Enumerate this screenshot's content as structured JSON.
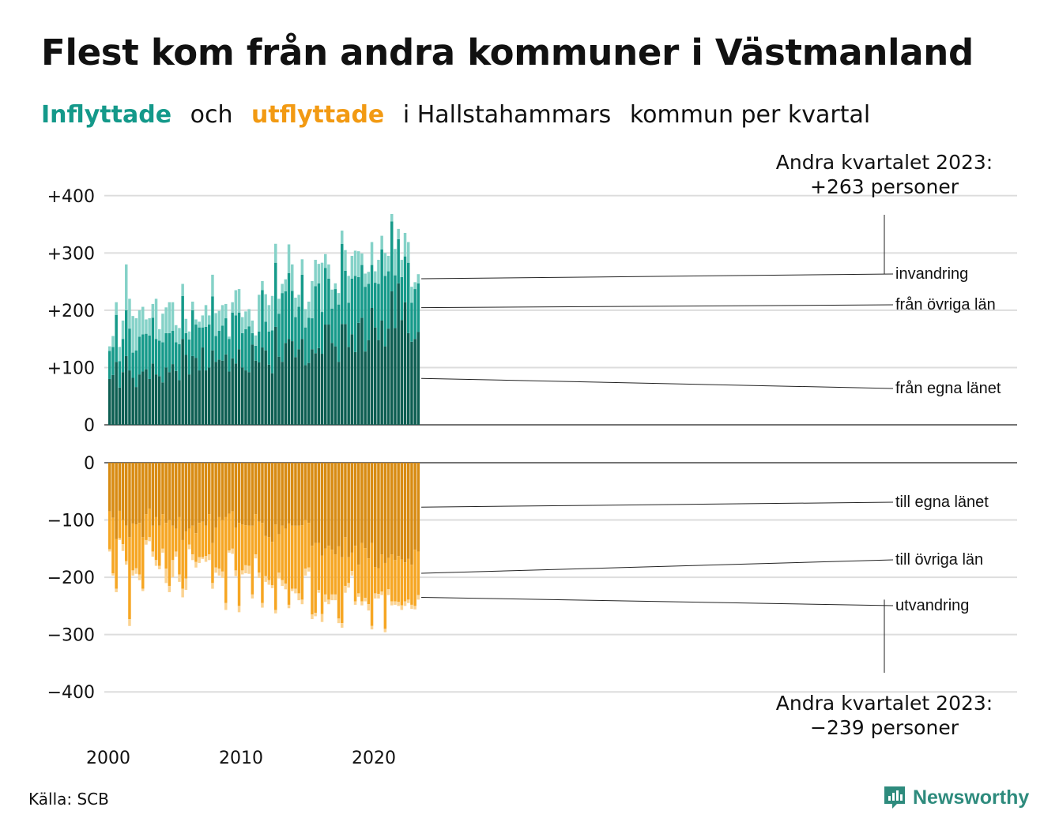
{
  "title": "Flest kom från andra kommuner i Västmanland",
  "subtitle": {
    "part1": "Inflyttade",
    "part2": "och",
    "part3": "utflyttade",
    "part4": "i Hallstahammars",
    "part5": "kommun per kvartal"
  },
  "source": "Källa: SCB",
  "brand": "Newsworthy",
  "colors": {
    "in_local": "#0d5e52",
    "in_other": "#169a8a",
    "in_abroad": "#85d2c8",
    "out_local": "#d88b12",
    "out_other": "#f6a623",
    "out_abroad": "#fbd392",
    "grid": "#dddddd",
    "brand": "#2e8b7d"
  },
  "chart_data": {
    "type": "bar",
    "stacked": true,
    "x_start": "2000 Q1",
    "x_end": "2023 Q2",
    "x_ticks": [
      "2000",
      "2010",
      "2020"
    ],
    "y_ticks_in": [
      "0",
      "+100",
      "+200",
      "+300",
      "+400"
    ],
    "y_ticks_out": [
      "0",
      "−100",
      "−200",
      "−300",
      "−400"
    ],
    "ylim_in": [
      0,
      400
    ],
    "ylim_out": [
      -400,
      0
    ],
    "grid": true,
    "annotation_in": [
      "Andra kvartalet 2023:",
      "+263 personer"
    ],
    "annotation_out": [
      "Andra kvartalet 2023:",
      "−239 personer"
    ],
    "in_segments": [
      "från egna länet",
      "från övriga län",
      "invandring"
    ],
    "out_segments": [
      "till egna länet",
      "till övriga län",
      "utvandring"
    ],
    "series": [
      {
        "name": "från egna länet",
        "values": [
          80,
          87,
          110,
          65,
          92,
          120,
          95,
          82,
          66,
          88,
          93,
          97,
          80,
          107,
          88,
          85,
          74,
          100,
          92,
          106,
          94,
          78,
          150,
          122,
          88,
          120,
          117,
          95,
          135,
          95,
          100,
          130,
          110,
          114,
          112,
          123,
          93,
          116,
          107,
          132,
          100,
          95,
          92,
          140,
          112,
          109,
          135,
          130,
          105,
          90,
          171,
          119,
          110,
          143,
          150,
          146,
          118,
          132,
          150,
          104,
          108,
          132,
          125,
          134,
          124,
          175,
          175,
          143,
          137,
          110,
          176,
          176,
          136,
          158,
          127,
          178,
          187,
          128,
          148,
          204,
          170,
          148,
          182,
          137,
          168,
          233,
          169,
          247,
          183,
          214,
          160,
          145,
          150,
          162
        ]
      },
      {
        "name": "från övriga län",
        "values": [
          49,
          49,
          82,
          46,
          58,
          80,
          73,
          44,
          64,
          66,
          65,
          62,
          76,
          80,
          62,
          62,
          70,
          60,
          68,
          58,
          50,
          63,
          75,
          38,
          61,
          80,
          58,
          75,
          35,
          76,
          75,
          94,
          45,
          50,
          61,
          63,
          57,
          80,
          84,
          64,
          60,
          72,
          80,
          20,
          26,
          54,
          100,
          50,
          58,
          75,
          112,
          75,
          120,
          90,
          115,
          88,
          70,
          74,
          112,
          66,
          79,
          54,
          117,
          113,
          73,
          99,
          80,
          60,
          100,
          100,
          140,
          93,
          77,
          97,
          133,
          80,
          92,
          113,
          98,
          75,
          78,
          98,
          124,
          123,
          100,
          122,
          92,
          77,
          75,
          80,
          123,
          68,
          87,
          85
        ]
      },
      {
        "name": "invandring",
        "values": [
          8,
          19,
          22,
          25,
          32,
          80,
          52,
          64,
          56,
          46,
          48,
          25,
          30,
          24,
          70,
          20,
          50,
          45,
          54,
          50,
          30,
          28,
          21,
          25,
          14,
          15,
          9,
          10,
          21,
          38,
          16,
          38,
          40,
          35,
          36,
          25,
          4,
          18,
          44,
          41,
          28,
          31,
          30,
          22,
          18,
          64,
          16,
          48,
          46,
          60,
          33,
          26,
          16,
          21,
          50,
          46,
          34,
          21,
          27,
          32,
          28,
          65,
          46,
          34,
          86,
          24,
          25,
          33,
          10,
          20,
          23,
          36,
          47,
          40,
          44,
          45,
          20,
          23,
          21,
          40,
          20,
          42,
          24,
          40,
          27,
          13,
          46,
          18,
          30,
          41,
          36,
          28,
          12,
          16
        ]
      },
      {
        "name": "till egna länet",
        "values": [
          -85,
          -96,
          -133,
          -84,
          -100,
          -110,
          -130,
          -106,
          -108,
          -105,
          -130,
          -90,
          -80,
          -110,
          -95,
          -110,
          -90,
          -105,
          -100,
          -110,
          -115,
          -95,
          -135,
          -120,
          -115,
          -110,
          -123,
          -105,
          -103,
          -110,
          -90,
          -140,
          -113,
          -95,
          -100,
          -95,
          -89,
          -85,
          -113,
          -105,
          -108,
          -109,
          -110,
          -110,
          -90,
          -103,
          -105,
          -128,
          -130,
          -138,
          -108,
          -125,
          -110,
          -115,
          -106,
          -110,
          -110,
          -110,
          -109,
          -100,
          -105,
          -145,
          -140,
          -140,
          -162,
          -150,
          -145,
          -152,
          -160,
          -146,
          -165,
          -130,
          -165,
          -157,
          -145,
          -178,
          -140,
          -149,
          -167,
          -140,
          -182,
          -184,
          -160,
          -175,
          -166,
          -160,
          -170,
          -163,
          -169,
          -174,
          -168,
          -178,
          -152,
          -155
        ]
      },
      {
        "name": "till övriga län",
        "values": [
          -66,
          -97,
          -87,
          -48,
          -42,
          -62,
          -143,
          -82,
          -76,
          -90,
          -90,
          -45,
          -50,
          -45,
          -75,
          -70,
          -60,
          -80,
          -115,
          -60,
          -40,
          -100,
          -85,
          -82,
          -28,
          -50,
          -50,
          -60,
          -62,
          -53,
          -70,
          -70,
          -70,
          -90,
          -90,
          -150,
          -64,
          -65,
          -75,
          -145,
          -80,
          -70,
          -70,
          -120,
          -70,
          -89,
          -140,
          -70,
          -75,
          -76,
          -149,
          -67,
          -95,
          -96,
          -142,
          -110,
          -110,
          -118,
          -130,
          -85,
          -78,
          -120,
          -122,
          -82,
          -102,
          -80,
          -94,
          -78,
          -70,
          -126,
          -115,
          -85,
          -45,
          -32,
          -97,
          -50,
          -102,
          -87,
          -80,
          -145,
          -46,
          -45,
          -65,
          -115,
          -55,
          -82,
          -72,
          -80,
          -80,
          -68,
          -71,
          -70,
          -98,
          -76
        ]
      },
      {
        "name": "utvandring",
        "values": [
          -4,
          -4,
          -6,
          -3,
          -12,
          -6,
          -12,
          -9,
          -10,
          -10,
          -4,
          -8,
          -7,
          -9,
          -10,
          -6,
          -7,
          -25,
          -11,
          -30,
          -9,
          -13,
          -15,
          -20,
          -8,
          -10,
          -10,
          -10,
          -3,
          -10,
          -10,
          -10,
          -9,
          -12,
          -11,
          -12,
          -4,
          -9,
          -10,
          -11,
          -7,
          -14,
          -14,
          -7,
          -7,
          -9,
          -8,
          -10,
          -8,
          -5,
          -6,
          -10,
          -10,
          -10,
          -6,
          -4,
          -8,
          -12,
          -8,
          -12,
          -7,
          -8,
          -6,
          -5,
          -14,
          -13,
          -8,
          -10,
          -10,
          -8,
          -8,
          -12,
          -8,
          -8,
          -6,
          -6,
          -7,
          -6,
          -11,
          -6,
          -9,
          -8,
          -6,
          -6,
          -10,
          -7,
          -6,
          -7,
          -8,
          -8,
          -6,
          -7,
          -6,
          -8
        ]
      }
    ]
  }
}
